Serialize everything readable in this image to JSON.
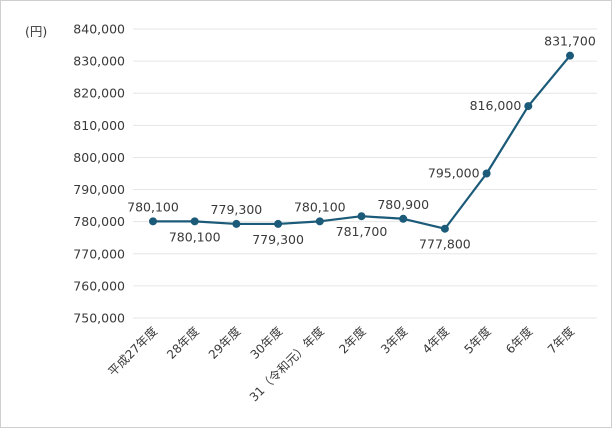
{
  "chart_data": {
    "type": "line",
    "unit_label": "(円)",
    "categories": [
      "平成27年度",
      "28年度",
      "29年度",
      "30年度",
      "31（令和元）年度",
      "2年度",
      "3年度",
      "4年度",
      "5年度",
      "6年度",
      "7年度"
    ],
    "series": [
      {
        "values": [
          780100,
          780100,
          779300,
          779300,
          780100,
          781700,
          780900,
          777800,
          795000,
          816000,
          831700
        ]
      }
    ],
    "data_labels": [
      "780,100",
      "780,100",
      "779,300",
      "779,300",
      "780,100",
      "781,700",
      "780,900",
      "777,800",
      "795,000",
      "816,000",
      "831,700"
    ],
    "label_position": [
      "above",
      "below",
      "above",
      "below",
      "above",
      "below",
      "above",
      "below",
      "left",
      "left",
      "above"
    ],
    "yticks": [
      "750,000",
      "760,000",
      "770,000",
      "780,000",
      "790,000",
      "800,000",
      "810,000",
      "820,000",
      "830,000",
      "840,000"
    ],
    "ylim": [
      750000,
      840000
    ],
    "grid": true,
    "colors": {
      "line": "#1b5a78",
      "grid": "#e6e6e6",
      "text": "#3a3a3a"
    }
  }
}
